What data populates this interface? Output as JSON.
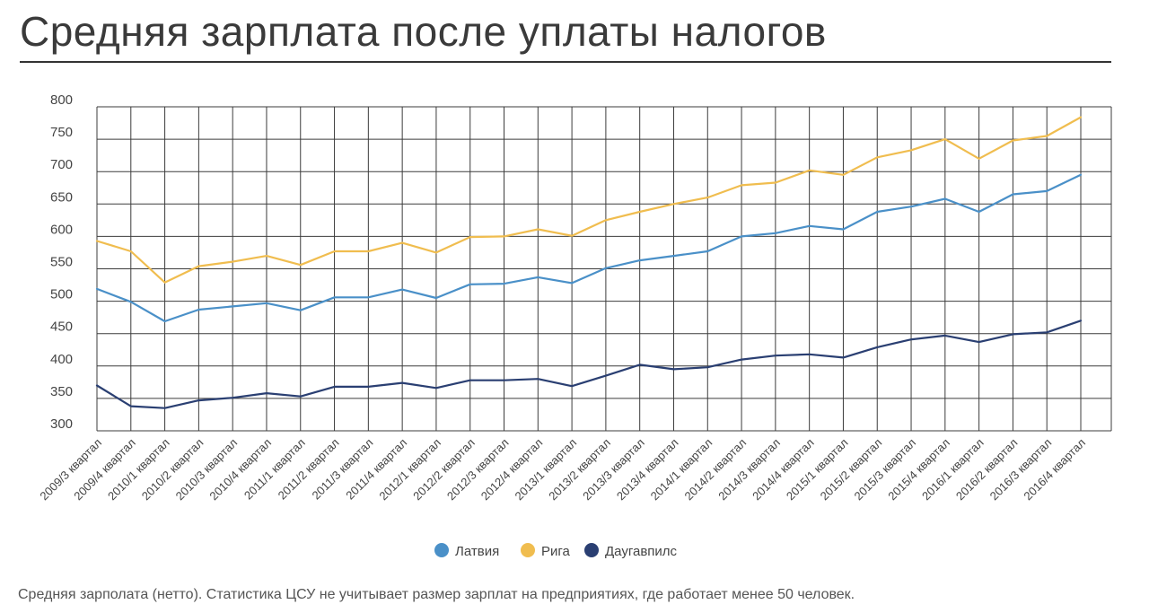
{
  "title": "Средняя зарплата после уплаты налогов",
  "note": "Средняя зарполата (нетто). Статистика ЦСУ не учитывает размер зарплат на предприятиях, где работает менее 50 человек.",
  "chart_data": {
    "type": "line",
    "title": "Средняя зарплата после уплаты налогов",
    "xlabel": "",
    "ylabel": "",
    "ylim": [
      300,
      800
    ],
    "yticks": [
      300,
      350,
      400,
      450,
      500,
      550,
      600,
      650,
      700,
      750,
      800
    ],
    "grid": true,
    "legend_position": "bottom-center",
    "categories": [
      "2009/3 квартал",
      "2009/4 квартал",
      "2010/1 квартал",
      "2010/2 квартал",
      "2010/3 квартал",
      "2010/4 квартал",
      "2011/1 квартал",
      "2011/2 квартал",
      "2011/3 квартал",
      "2011/4 квартал",
      "2012/1 квартал",
      "2012/2 квартал",
      "2012/3 квартал",
      "2012/4 квартал",
      "2013/1 квартал",
      "2013/2 квартал",
      "2013/3 квартал",
      "2013/4 квартал",
      "2014/1 квартал",
      "2014/2 квартал",
      "2014/3 квартал",
      "2014/4 квартал",
      "2015/1 квартал",
      "2015/2 квартал",
      "2015/3 квартал",
      "2015/4 квартал",
      "2016/1 квартал",
      "2016/2 квартал",
      "2016/3 квартал",
      "2016/4 квартал"
    ],
    "series": [
      {
        "name": "Латвия",
        "color": "#4a90c8",
        "values": [
          519,
          499,
          469,
          487,
          492,
          497,
          486,
          506,
          506,
          518,
          505,
          526,
          527,
          537,
          528,
          551,
          563,
          570,
          577,
          600,
          605,
          616,
          611,
          638,
          646,
          658,
          638,
          665,
          670,
          695
        ]
      },
      {
        "name": "Рига",
        "color": "#f0bd4f",
        "values": [
          593,
          577,
          529,
          554,
          561,
          570,
          556,
          577,
          577,
          590,
          575,
          599,
          600,
          611,
          601,
          625,
          638,
          650,
          660,
          679,
          683,
          702,
          695,
          722,
          733,
          750,
          720,
          748,
          755,
          784
        ]
      },
      {
        "name": "Даугавпилс",
        "color": "#2a3f72",
        "values": [
          370,
          338,
          335,
          347,
          351,
          358,
          353,
          368,
          368,
          374,
          366,
          378,
          378,
          380,
          369,
          385,
          402,
          395,
          398,
          410,
          416,
          418,
          413,
          429,
          441,
          447,
          437,
          449,
          452,
          470
        ]
      }
    ]
  }
}
